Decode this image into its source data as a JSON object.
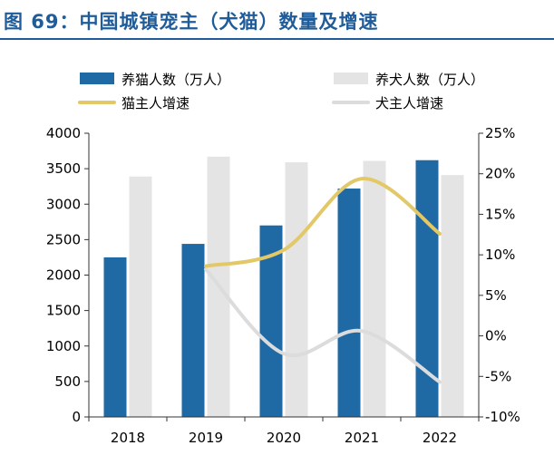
{
  "figure": {
    "title": "图 69：中国城镇宠主（犬猫）数量及增速"
  },
  "chart_data": {
    "type": "bar",
    "categories": [
      "2018",
      "2019",
      "2020",
      "2021",
      "2022"
    ],
    "series": [
      {
        "name": "养猫人数（万人）",
        "kind": "bar",
        "axis": "left",
        "color": "#1f6aa5",
        "values": [
          2250,
          2440,
          2700,
          3220,
          3620
        ]
      },
      {
        "name": "养犬人数（万人）",
        "kind": "bar",
        "axis": "left",
        "color": "#e4e4e4",
        "values": [
          3390,
          3670,
          3590,
          3610,
          3410
        ]
      },
      {
        "name": "猫主人增速",
        "kind": "line",
        "axis": "right",
        "color": "#e3c868",
        "values": [
          null,
          8.6,
          10.6,
          19.4,
          12.6
        ]
      },
      {
        "name": "犬主人增速",
        "kind": "line",
        "axis": "right",
        "color": "#dcdcdc",
        "values": [
          null,
          8.2,
          -2.2,
          0.6,
          -5.7
        ]
      }
    ],
    "y_left": {
      "min": 0,
      "max": 4000,
      "step": 500,
      "ticks": [
        "0",
        "500",
        "1000",
        "1500",
        "2000",
        "2500",
        "3000",
        "3500",
        "4000"
      ]
    },
    "y_right": {
      "min": -10,
      "max": 25,
      "step": 5,
      "ticks": [
        "-10%",
        "-5%",
        "0%",
        "5%",
        "10%",
        "15%",
        "20%",
        "25%"
      ]
    },
    "legend": {
      "position": "top"
    }
  }
}
